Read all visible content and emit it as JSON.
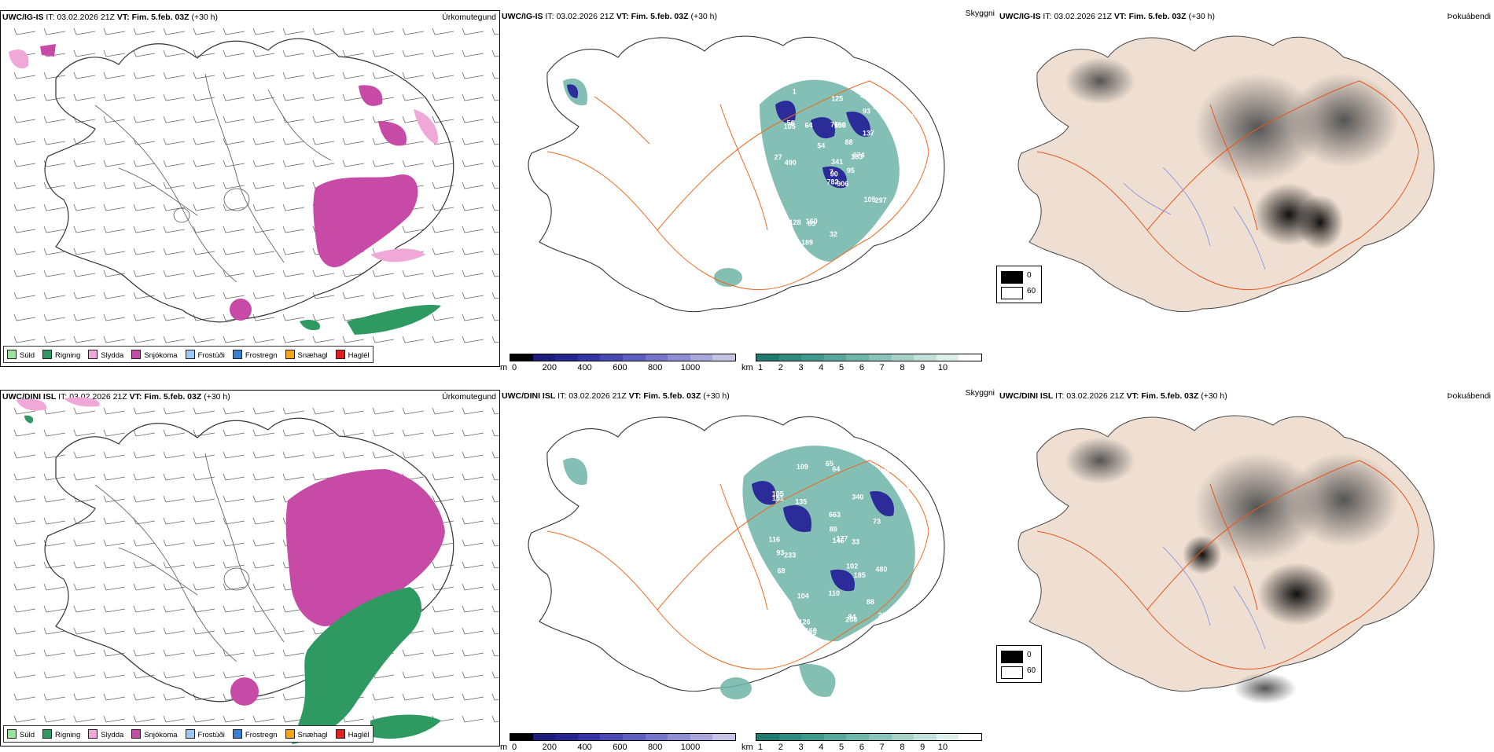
{
  "rows": [
    {
      "model": "UWC/IG-IS",
      "it_label": "IT:",
      "it_value": "03.02.2026 21Z",
      "vt_label": "VT:",
      "vt_value": "Fim. 5.feb. 03Z",
      "lead": "(+30 h)",
      "precip_title": "Úrkomutegund",
      "vis_title": "Skyggni",
      "fog_title": "Þokuábendi",
      "vis_labels": [
        "906",
        "105",
        "90",
        "101",
        "183",
        "85",
        "46",
        "90",
        "93",
        "95",
        "1",
        "140",
        "490",
        "675",
        "782",
        "137",
        "89",
        "76",
        "88",
        "128",
        "54",
        "58",
        "189",
        "153",
        "674",
        "297",
        "56",
        "125",
        "27",
        "105",
        "139",
        "7",
        "32",
        "341",
        "64",
        "186",
        "160"
      ]
    },
    {
      "model": "UWC/DINI ISL",
      "it_label": "IT:",
      "it_value": "03.02.2026 21Z",
      "vt_label": "VT:",
      "vt_value": "Fim. 5.feb. 03Z",
      "lead": "(+30 h)",
      "precip_title": "Úrkomutegund",
      "vis_title": "Skyggni",
      "fog_title": "Þokuábendi",
      "vis_labels": [
        "116",
        "64",
        "73",
        "101",
        "105",
        "109",
        "233",
        "340",
        "663",
        "55",
        "177",
        "480",
        "65",
        "151",
        "135",
        "104",
        "84",
        "93",
        "102",
        "110",
        "88",
        "229",
        "144",
        "89",
        "126",
        "146",
        "185",
        "109",
        "29",
        "208",
        "68",
        "98",
        "33",
        "42",
        "160"
      ]
    }
  ],
  "precip_legend": [
    {
      "label": "Súld",
      "color": "#9be39b"
    },
    {
      "label": "Rigning",
      "color": "#2e9a62"
    },
    {
      "label": "Slydda",
      "color": "#f0a8d8"
    },
    {
      "label": "Snjókoma",
      "color": "#c64aa6"
    },
    {
      "label": "Frostúði",
      "color": "#9ec8f4"
    },
    {
      "label": "Frostregn",
      "color": "#3a7fd0"
    },
    {
      "label": "Snæhagl",
      "color": "#f2a516"
    },
    {
      "label": "Haglél",
      "color": "#e02020"
    }
  ],
  "colorbar_height": {
    "unit": "m",
    "ticks": [
      "0",
      "200",
      "400",
      "600",
      "800",
      "1000"
    ],
    "colors": [
      "#000000",
      "#1c1c7a",
      "#252591",
      "#3434a6",
      "#4949b4",
      "#5e5ec0",
      "#7575c9",
      "#8e8ed2",
      "#a8a8dc",
      "#c4c4e7"
    ]
  },
  "colorbar_vis": {
    "unit": "km",
    "ticks": [
      "1",
      "2",
      "3",
      "4",
      "5",
      "6",
      "7",
      "8",
      "9",
      "10"
    ],
    "colors": [
      "#1f7a70",
      "#2f8b80",
      "#3f9a8e",
      "#56a89c",
      "#6eb6aa",
      "#88c4b9",
      "#a4d2c9",
      "#c1e1da",
      "#def0eb",
      "#ffffff"
    ]
  },
  "fog_legend": [
    {
      "label": "0",
      "color": "#000000"
    },
    {
      "label": "60",
      "color": "#ffffff"
    }
  ],
  "colors": {
    "snow": "#c64aa6",
    "rain": "#2e9a62",
    "sleet": "#f0a8d8",
    "land_tan": "#efdfd2",
    "roads": "#ee6a22",
    "rivers": "#7a8fe6",
    "vis_teal": "#6fb4a8",
    "vis_blue": "#2b2b9a"
  }
}
